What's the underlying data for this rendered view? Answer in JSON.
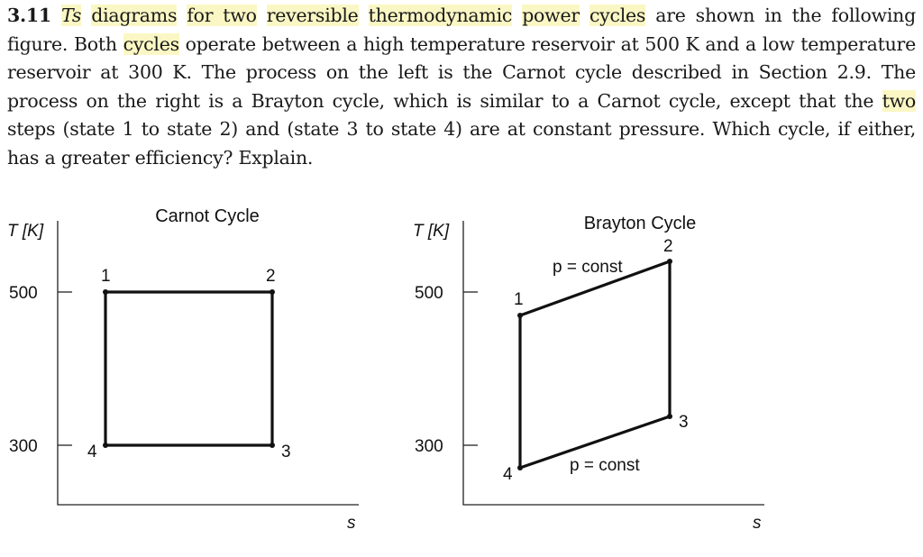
{
  "problem": {
    "number": "3.11",
    "seg": [
      {
        "t": "Ts",
        "h": true,
        "i": true
      },
      {
        "t": " ",
        "h": false,
        "i": false
      },
      {
        "t": "diagrams",
        "h": true,
        "i": false
      },
      {
        "t": " ",
        "h": false,
        "i": false
      },
      {
        "t": "for two",
        "h": true,
        "i": false
      },
      {
        "t": " ",
        "h": false,
        "i": false
      },
      {
        "t": "reversible",
        "h": true,
        "i": false
      },
      {
        "t": " ",
        "h": false,
        "i": false
      },
      {
        "t": "thermodynamic",
        "h": true,
        "i": false
      },
      {
        "t": " ",
        "h": false,
        "i": false
      },
      {
        "t": "power",
        "h": true,
        "i": false
      },
      {
        "t": " ",
        "h": false,
        "i": false
      },
      {
        "t": "cycles",
        "h": true,
        "i": false
      },
      {
        "t": " are shown in the following figure. Both ",
        "h": false,
        "i": false
      },
      {
        "t": "cycles",
        "h": true,
        "i": false
      },
      {
        "t": " operate between a high temperature reservoir at 500 K and a low temperature reservoir at 300 K. The process on the left is the Carnot cycle described in Section 2.9. The process on the right is a Brayton cycle, which is similar to a Carnot cycle, except that the ",
        "h": false,
        "i": false
      },
      {
        "t": "two",
        "h": true,
        "i": false
      },
      {
        "t": " steps (state 1 to state 2) and (state 3 to state 4) are at constant pressure. Which cycle, if either, has a greater efficiency? Explain.",
        "h": false,
        "i": false
      }
    ]
  },
  "chart_data": [
    {
      "type": "line",
      "title": "Carnot Cycle",
      "xlabel": "s",
      "ylabel": "T [K]",
      "yticks": [
        500,
        300
      ],
      "points": [
        {
          "label": "1",
          "T": 500
        },
        {
          "label": "2",
          "T": 500
        },
        {
          "label": "3",
          "T": 300
        },
        {
          "label": "4",
          "T": 300
        }
      ]
    },
    {
      "type": "line",
      "title": "Brayton Cycle",
      "xlabel": "s",
      "ylabel": "T [K]",
      "yticks": [
        500,
        300
      ],
      "points": [
        {
          "label": "1",
          "T": 485
        },
        {
          "label": "2",
          "T": 540
        },
        {
          "label": "3",
          "T": 338
        },
        {
          "label": "4",
          "T": 270
        }
      ],
      "annotations": [
        "p = const",
        "p = const"
      ]
    }
  ]
}
